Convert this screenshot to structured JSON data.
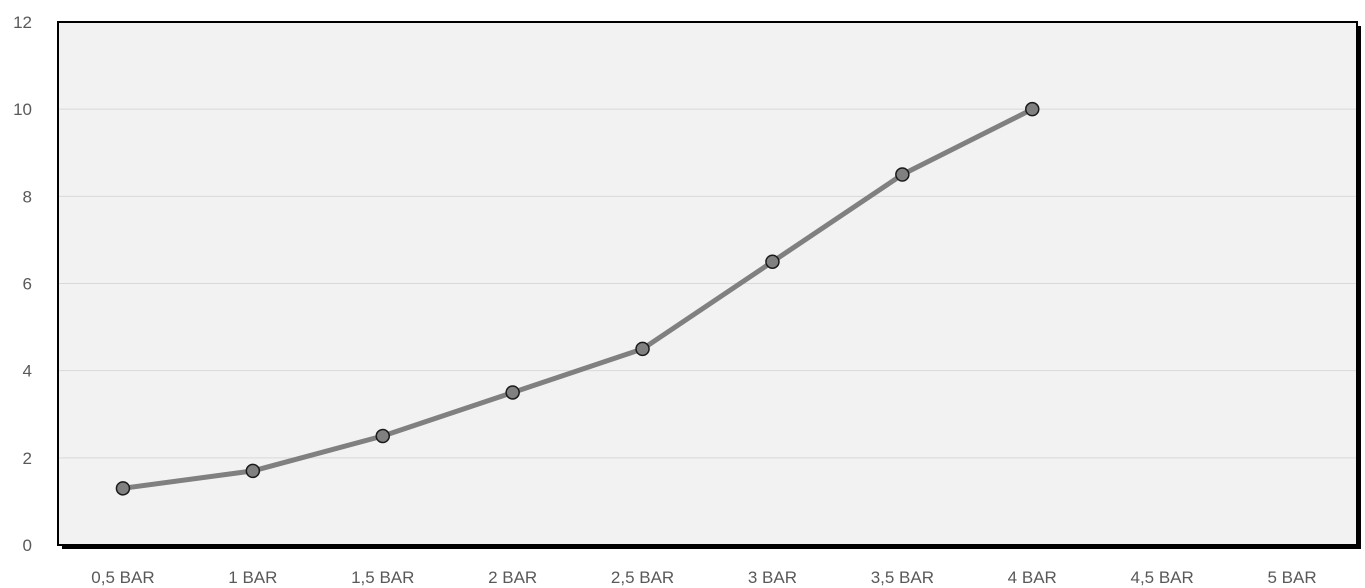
{
  "chart_data": {
    "type": "line",
    "title": "",
    "xlabel": "",
    "ylabel": "",
    "categories": [
      "0,5 BAR",
      "1 BAR",
      "1,5 BAR",
      "2 BAR",
      "2,5 BAR",
      "3 BAR",
      "3,5 BAR",
      "4 BAR",
      "4,5 BAR",
      "5 BAR"
    ],
    "series": [
      {
        "values": [
          1.3,
          1.7,
          2.5,
          3.5,
          4.5,
          6.5,
          8.5,
          10,
          null,
          null
        ]
      }
    ],
    "ylim": [
      0,
      12
    ],
    "yticks": [
      "0",
      "2",
      "4",
      "6",
      "8",
      "10",
      "12"
    ],
    "grid": true,
    "legend": "none",
    "colors": {
      "line": "#808080",
      "marker_fill": "#808080",
      "marker_stroke": "#1a1a1a",
      "plot_background": "#f2f2f2",
      "frame": "#000000",
      "grid": "#d9d9d9"
    }
  }
}
